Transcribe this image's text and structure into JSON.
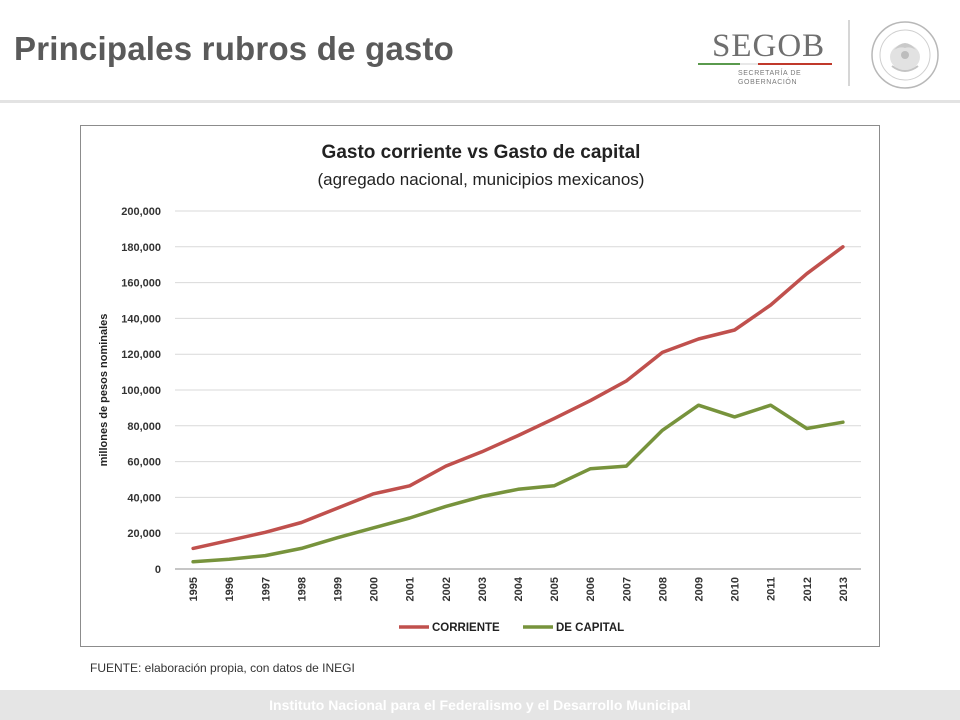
{
  "slide": {
    "title": "Principales rubros de gasto",
    "source_note": "FUENTE: elaboración propia, con datos de INEGI",
    "footer": "Instituto Nacional para el Federalismo y el Desarrollo Municipal"
  },
  "logo": {
    "wordmark": "SEGOB",
    "subtitle_line1": "SECRETARÍA DE",
    "subtitle_line2": "GOBERNACIÓN",
    "seal_icon": "escudo-nacional-seal"
  },
  "chart_data": {
    "type": "line",
    "title": "Gasto corriente vs Gasto de capital",
    "subtitle": "(agregado nacional, municipios mexicanos)",
    "xlabel": "",
    "ylabel": "millones de pesos nominales",
    "ylim": [
      0,
      200000
    ],
    "y_ticks": [
      "0",
      "20,000",
      "40,000",
      "60,000",
      "80,000",
      "100,000",
      "120,000",
      "140,000",
      "160,000",
      "180,000",
      "200,000"
    ],
    "y_tick_values": [
      0,
      20000,
      40000,
      60000,
      80000,
      100000,
      120000,
      140000,
      160000,
      180000,
      200000
    ],
    "grid": true,
    "legend_position": "bottom",
    "x": [
      "1995",
      "1996",
      "1997",
      "1998",
      "1999",
      "2000",
      "2001",
      "2002",
      "2003",
      "2004",
      "2005",
      "2006",
      "2007",
      "2008",
      "2009",
      "2010",
      "2011",
      "2012",
      "2013"
    ],
    "series": [
      {
        "name": "CORRIENTE",
        "color": "#c0504d",
        "values": [
          11500,
          16000,
          20500,
          26000,
          34000,
          42000,
          46500,
          57500,
          65500,
          74500,
          84000,
          94000,
          105000,
          121000,
          128500,
          133500,
          147500,
          165000,
          180000
        ]
      },
      {
        "name": "DE CAPITAL",
        "color": "#77933c",
        "values": [
          4000,
          5500,
          7500,
          11500,
          17500,
          23000,
          28500,
          35000,
          40500,
          44500,
          46500,
          56000,
          57500,
          77500,
          91500,
          85000,
          91500,
          78500,
          82000
        ]
      }
    ]
  }
}
